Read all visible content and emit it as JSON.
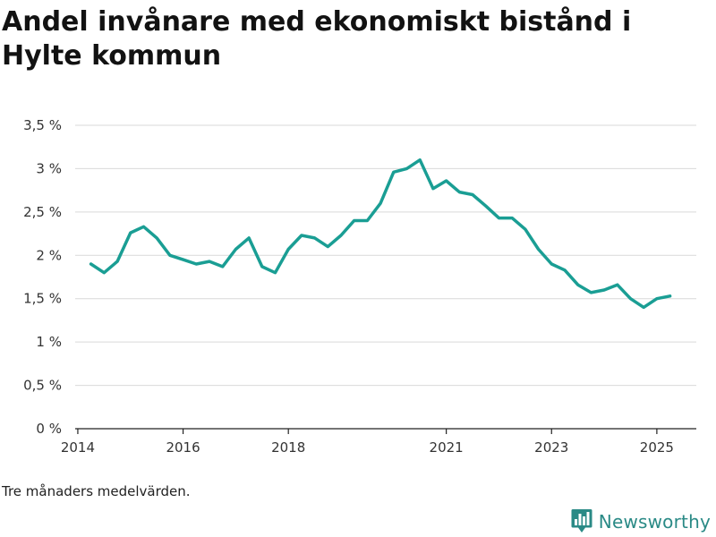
{
  "title": "Andel invånare med ekonomiskt bistånd i Hylte kommun",
  "footnote": "Tre månaders medelvärden.",
  "brand": {
    "name": "Newsworthy",
    "icon": "bar-chart-logo-icon",
    "color": "#2a8a86"
  },
  "chart_data": {
    "type": "line",
    "title": "Andel invånare med ekonomiskt bistånd i Hylte kommun",
    "xlabel": "",
    "ylabel": "",
    "ylim": [
      0,
      3.5
    ],
    "xlim": [
      2013.95,
      2025.75
    ],
    "y_ticks": [
      {
        "value": 0,
        "label": "0 %"
      },
      {
        "value": 0.5,
        "label": "0,5 %"
      },
      {
        "value": 1,
        "label": "1 %"
      },
      {
        "value": 1.5,
        "label": "1,5 %"
      },
      {
        "value": 2,
        "label": "2 %"
      },
      {
        "value": 2.5,
        "label": "2,5 %"
      },
      {
        "value": 3,
        "label": "3 %"
      },
      {
        "value": 3.5,
        "label": "3,5 %"
      }
    ],
    "x_ticks": [
      {
        "value": 2014,
        "label": "2014"
      },
      {
        "value": 2016,
        "label": "2016"
      },
      {
        "value": 2018,
        "label": "2018"
      },
      {
        "value": 2021,
        "label": "2021"
      },
      {
        "value": 2023,
        "label": "2023"
      },
      {
        "value": 2025,
        "label": "2025"
      }
    ],
    "grid": true,
    "series": [
      {
        "name": "Andel invånare med ekonomiskt bistånd",
        "color": "#1a9e94",
        "x": [
          2014.25,
          2014.5,
          2014.75,
          2015.0,
          2015.25,
          2015.5,
          2015.75,
          2016.0,
          2016.25,
          2016.5,
          2016.75,
          2017.0,
          2017.25,
          2017.5,
          2017.75,
          2018.0,
          2018.25,
          2018.5,
          2018.75,
          2019.0,
          2019.25,
          2019.5,
          2019.75,
          2020.0,
          2020.25,
          2020.5,
          2020.75,
          2021.0,
          2021.25,
          2021.5,
          2021.75,
          2022.0,
          2022.25,
          2022.5,
          2022.75,
          2023.0,
          2023.25,
          2023.5,
          2023.75,
          2024.0,
          2024.25,
          2024.5,
          2024.75,
          2025.0,
          2025.25
        ],
        "values": [
          1.9,
          1.8,
          1.93,
          2.26,
          2.33,
          2.2,
          2.0,
          1.95,
          1.9,
          1.93,
          1.87,
          2.07,
          2.2,
          1.87,
          1.8,
          2.07,
          2.23,
          2.2,
          2.1,
          2.23,
          2.4,
          2.4,
          2.6,
          2.96,
          3.0,
          3.1,
          2.77,
          2.86,
          2.73,
          2.7,
          2.57,
          2.43,
          2.43,
          2.3,
          2.07,
          1.9,
          1.83,
          1.66,
          1.57,
          1.6,
          1.66,
          1.5,
          1.4,
          1.5,
          1.53
        ]
      }
    ]
  }
}
